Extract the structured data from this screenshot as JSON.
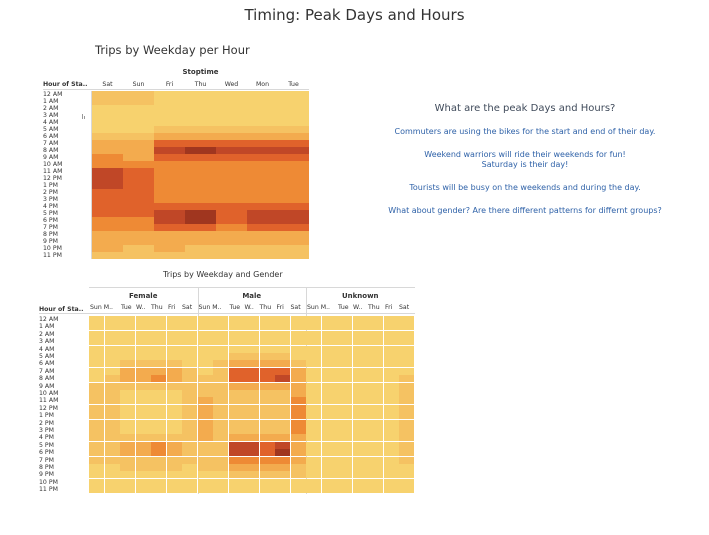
{
  "page_title": "Timing: Peak Days and Hours",
  "colors": {
    "scale": [
      "#f7d26e",
      "#f5c262",
      "#f3ab4e",
      "#ee8a35",
      "#e0622b",
      "#c04727",
      "#a0361f"
    ],
    "divider": "#cfcfcf"
  },
  "chart_data": [
    {
      "type": "heatmap",
      "title": "Trips by Weekday per Hour",
      "column_header": "Stoptime",
      "row_header": "Hour of Sta..",
      "columns": [
        "Sat",
        "Sun",
        "Fri",
        "Thu",
        "Wed",
        "Mon",
        "Tue"
      ],
      "rows": [
        "12 AM",
        "1 AM",
        "2 AM",
        "3 AM",
        "4 AM",
        "5 AM",
        "6 AM",
        "7 AM",
        "8 AM",
        "9 AM",
        "10 AM",
        "11 AM",
        "12 PM",
        "1 PM",
        "2 PM",
        "3 PM",
        "4 PM",
        "5 PM",
        "6 PM",
        "7 PM",
        "8 PM",
        "9 PM",
        "10 PM",
        "11 PM"
      ],
      "values": [
        [
          1,
          1,
          0,
          0,
          0,
          0,
          0
        ],
        [
          1,
          1,
          0,
          0,
          0,
          0,
          0
        ],
        [
          0,
          0,
          0,
          0,
          0,
          0,
          0
        ],
        [
          0,
          0,
          0,
          0,
          0,
          0,
          0
        ],
        [
          0,
          0,
          0,
          0,
          0,
          0,
          0
        ],
        [
          0,
          0,
          1,
          1,
          1,
          1,
          1
        ],
        [
          1,
          1,
          2,
          2,
          2,
          2,
          2
        ],
        [
          2,
          2,
          4,
          4,
          4,
          4,
          4
        ],
        [
          2,
          2,
          5,
          6,
          5,
          5,
          5
        ],
        [
          3,
          2,
          4,
          4,
          4,
          4,
          4
        ],
        [
          3,
          3,
          3,
          3,
          3,
          3,
          3
        ],
        [
          5,
          4,
          3,
          3,
          3,
          3,
          3
        ],
        [
          5,
          4,
          3,
          3,
          3,
          3,
          3
        ],
        [
          5,
          4,
          3,
          3,
          3,
          3,
          3
        ],
        [
          4,
          4,
          3,
          3,
          3,
          3,
          3
        ],
        [
          4,
          4,
          3,
          3,
          3,
          3,
          3
        ],
        [
          4,
          4,
          4,
          4,
          4,
          4,
          4
        ],
        [
          4,
          4,
          5,
          6,
          4,
          5,
          5
        ],
        [
          3,
          3,
          5,
          6,
          4,
          5,
          5
        ],
        [
          3,
          3,
          4,
          4,
          3,
          4,
          4
        ],
        [
          2,
          2,
          2,
          2,
          2,
          2,
          2
        ],
        [
          2,
          2,
          2,
          2,
          2,
          2,
          2
        ],
        [
          2,
          1,
          2,
          1,
          1,
          1,
          1
        ],
        [
          1,
          1,
          1,
          1,
          1,
          1,
          1
        ]
      ]
    },
    {
      "type": "heatmap",
      "title": "Trips by Weekday and Gender",
      "row_header": "Hour of Sta..",
      "groups": [
        "Female",
        "Male",
        "Unknown"
      ],
      "columns": [
        "Sun M..",
        "Tue",
        "W..",
        "Thu",
        "Fri",
        "Sat"
      ],
      "rows": [
        "12 AM",
        "1 AM",
        "2 AM",
        "3 AM",
        "4 AM",
        "5 AM",
        "6 AM",
        "7 AM",
        "8 AM",
        "9 AM",
        "10 AM",
        "11 AM",
        "12 PM",
        "1 PM",
        "2 PM",
        "3 PM",
        "4 PM",
        "5 PM",
        "6 PM",
        "7 PM",
        "8 PM",
        "9 PM",
        "10 PM",
        "11 PM"
      ],
      "values": [
        [
          0,
          0,
          0,
          0,
          0,
          0,
          0,
          0,
          0,
          0,
          0,
          0,
          0,
          0,
          0,
          0,
          0,
          0,
          0,
          0,
          0
        ],
        [
          0,
          0,
          0,
          0,
          0,
          0,
          0,
          0,
          0,
          0,
          0,
          0,
          0,
          0,
          0,
          0,
          0,
          0,
          0,
          0,
          0
        ],
        [
          0,
          0,
          0,
          0,
          0,
          0,
          0,
          0,
          0,
          0,
          0,
          0,
          0,
          0,
          0,
          0,
          0,
          0,
          0,
          0,
          0
        ],
        [
          0,
          0,
          0,
          0,
          0,
          0,
          0,
          0,
          0,
          0,
          0,
          0,
          0,
          0,
          0,
          0,
          0,
          0,
          0,
          0,
          0
        ],
        [
          0,
          0,
          0,
          0,
          0,
          0,
          0,
          0,
          0,
          0,
          0,
          0,
          0,
          0,
          0,
          0,
          0,
          0,
          0,
          0,
          0
        ],
        [
          0,
          0,
          0,
          0,
          0,
          0,
          0,
          0,
          0,
          1,
          1,
          1,
          1,
          0,
          0,
          0,
          0,
          0,
          0,
          0,
          0
        ],
        [
          0,
          0,
          1,
          1,
          1,
          1,
          0,
          0,
          1,
          2,
          2,
          2,
          2,
          1,
          0,
          0,
          0,
          0,
          0,
          0,
          0
        ],
        [
          0,
          0,
          2,
          2,
          2,
          2,
          1,
          0,
          1,
          4,
          4,
          4,
          4,
          2,
          0,
          0,
          0,
          0,
          0,
          0,
          0
        ],
        [
          0,
          1,
          2,
          2,
          3,
          2,
          1,
          1,
          1,
          4,
          4,
          4,
          5,
          2,
          0,
          0,
          0,
          0,
          0,
          0,
          1
        ],
        [
          1,
          1,
          1,
          1,
          1,
          1,
          1,
          1,
          1,
          2,
          2,
          2,
          2,
          2,
          0,
          0,
          0,
          0,
          0,
          0,
          1
        ],
        [
          1,
          1,
          0,
          0,
          0,
          0,
          1,
          1,
          1,
          1,
          1,
          1,
          1,
          2,
          0,
          0,
          0,
          0,
          0,
          0,
          1
        ],
        [
          1,
          1,
          0,
          0,
          0,
          0,
          1,
          2,
          1,
          1,
          1,
          1,
          1,
          3,
          0,
          0,
          0,
          0,
          0,
          0,
          1
        ],
        [
          1,
          1,
          0,
          0,
          0,
          0,
          1,
          2,
          1,
          1,
          1,
          1,
          1,
          3,
          0,
          0,
          0,
          0,
          0,
          0,
          1
        ],
        [
          1,
          1,
          0,
          0,
          0,
          0,
          1,
          2,
          1,
          1,
          1,
          1,
          1,
          3,
          0,
          0,
          0,
          0,
          0,
          0,
          1
        ],
        [
          1,
          1,
          0,
          0,
          0,
          0,
          1,
          2,
          1,
          1,
          1,
          1,
          1,
          3,
          0,
          0,
          0,
          0,
          0,
          0,
          1
        ],
        [
          1,
          1,
          0,
          0,
          0,
          0,
          1,
          2,
          1,
          1,
          1,
          1,
          1,
          3,
          0,
          0,
          0,
          0,
          0,
          0,
          1
        ],
        [
          1,
          1,
          1,
          1,
          1,
          1,
          1,
          2,
          1,
          2,
          2,
          2,
          2,
          2,
          0,
          0,
          0,
          0,
          0,
          0,
          1
        ],
        [
          1,
          1,
          2,
          2,
          3,
          2,
          1,
          1,
          1,
          5,
          5,
          4,
          5,
          2,
          0,
          0,
          0,
          0,
          0,
          0,
          1
        ],
        [
          1,
          1,
          2,
          2,
          3,
          2,
          1,
          1,
          1,
          5,
          5,
          4,
          6,
          2,
          0,
          0,
          0,
          0,
          0,
          0,
          1
        ],
        [
          1,
          1,
          1,
          1,
          1,
          1,
          1,
          1,
          1,
          3,
          3,
          3,
          3,
          2,
          0,
          0,
          0,
          0,
          0,
          0,
          1
        ],
        [
          0,
          0,
          1,
          1,
          1,
          1,
          0,
          1,
          1,
          2,
          2,
          2,
          2,
          1,
          0,
          0,
          0,
          0,
          0,
          0,
          0
        ],
        [
          0,
          0,
          0,
          0,
          0,
          0,
          0,
          0,
          0,
          1,
          1,
          1,
          1,
          1,
          0,
          0,
          0,
          0,
          0,
          0,
          0
        ],
        [
          0,
          0,
          0,
          0,
          0,
          0,
          0,
          0,
          0,
          0,
          0,
          0,
          0,
          0,
          0,
          0,
          0,
          0,
          0,
          0,
          0
        ],
        [
          0,
          0,
          0,
          0,
          0,
          0,
          0,
          0,
          0,
          0,
          0,
          0,
          0,
          0,
          0,
          0,
          0,
          0,
          0,
          0,
          0
        ]
      ]
    }
  ],
  "text_panel": {
    "question": "What are the peak Days and Hours?",
    "lines": [
      "Commuters are using the bikes for the start and end of their day.",
      "Weekend warriors will ride their weekends for fun!\nSaturday is their day!",
      "Tourists will be busy on the weekends and during the day.",
      "What about gender?  Are there different patterns for differnt groups?"
    ]
  }
}
